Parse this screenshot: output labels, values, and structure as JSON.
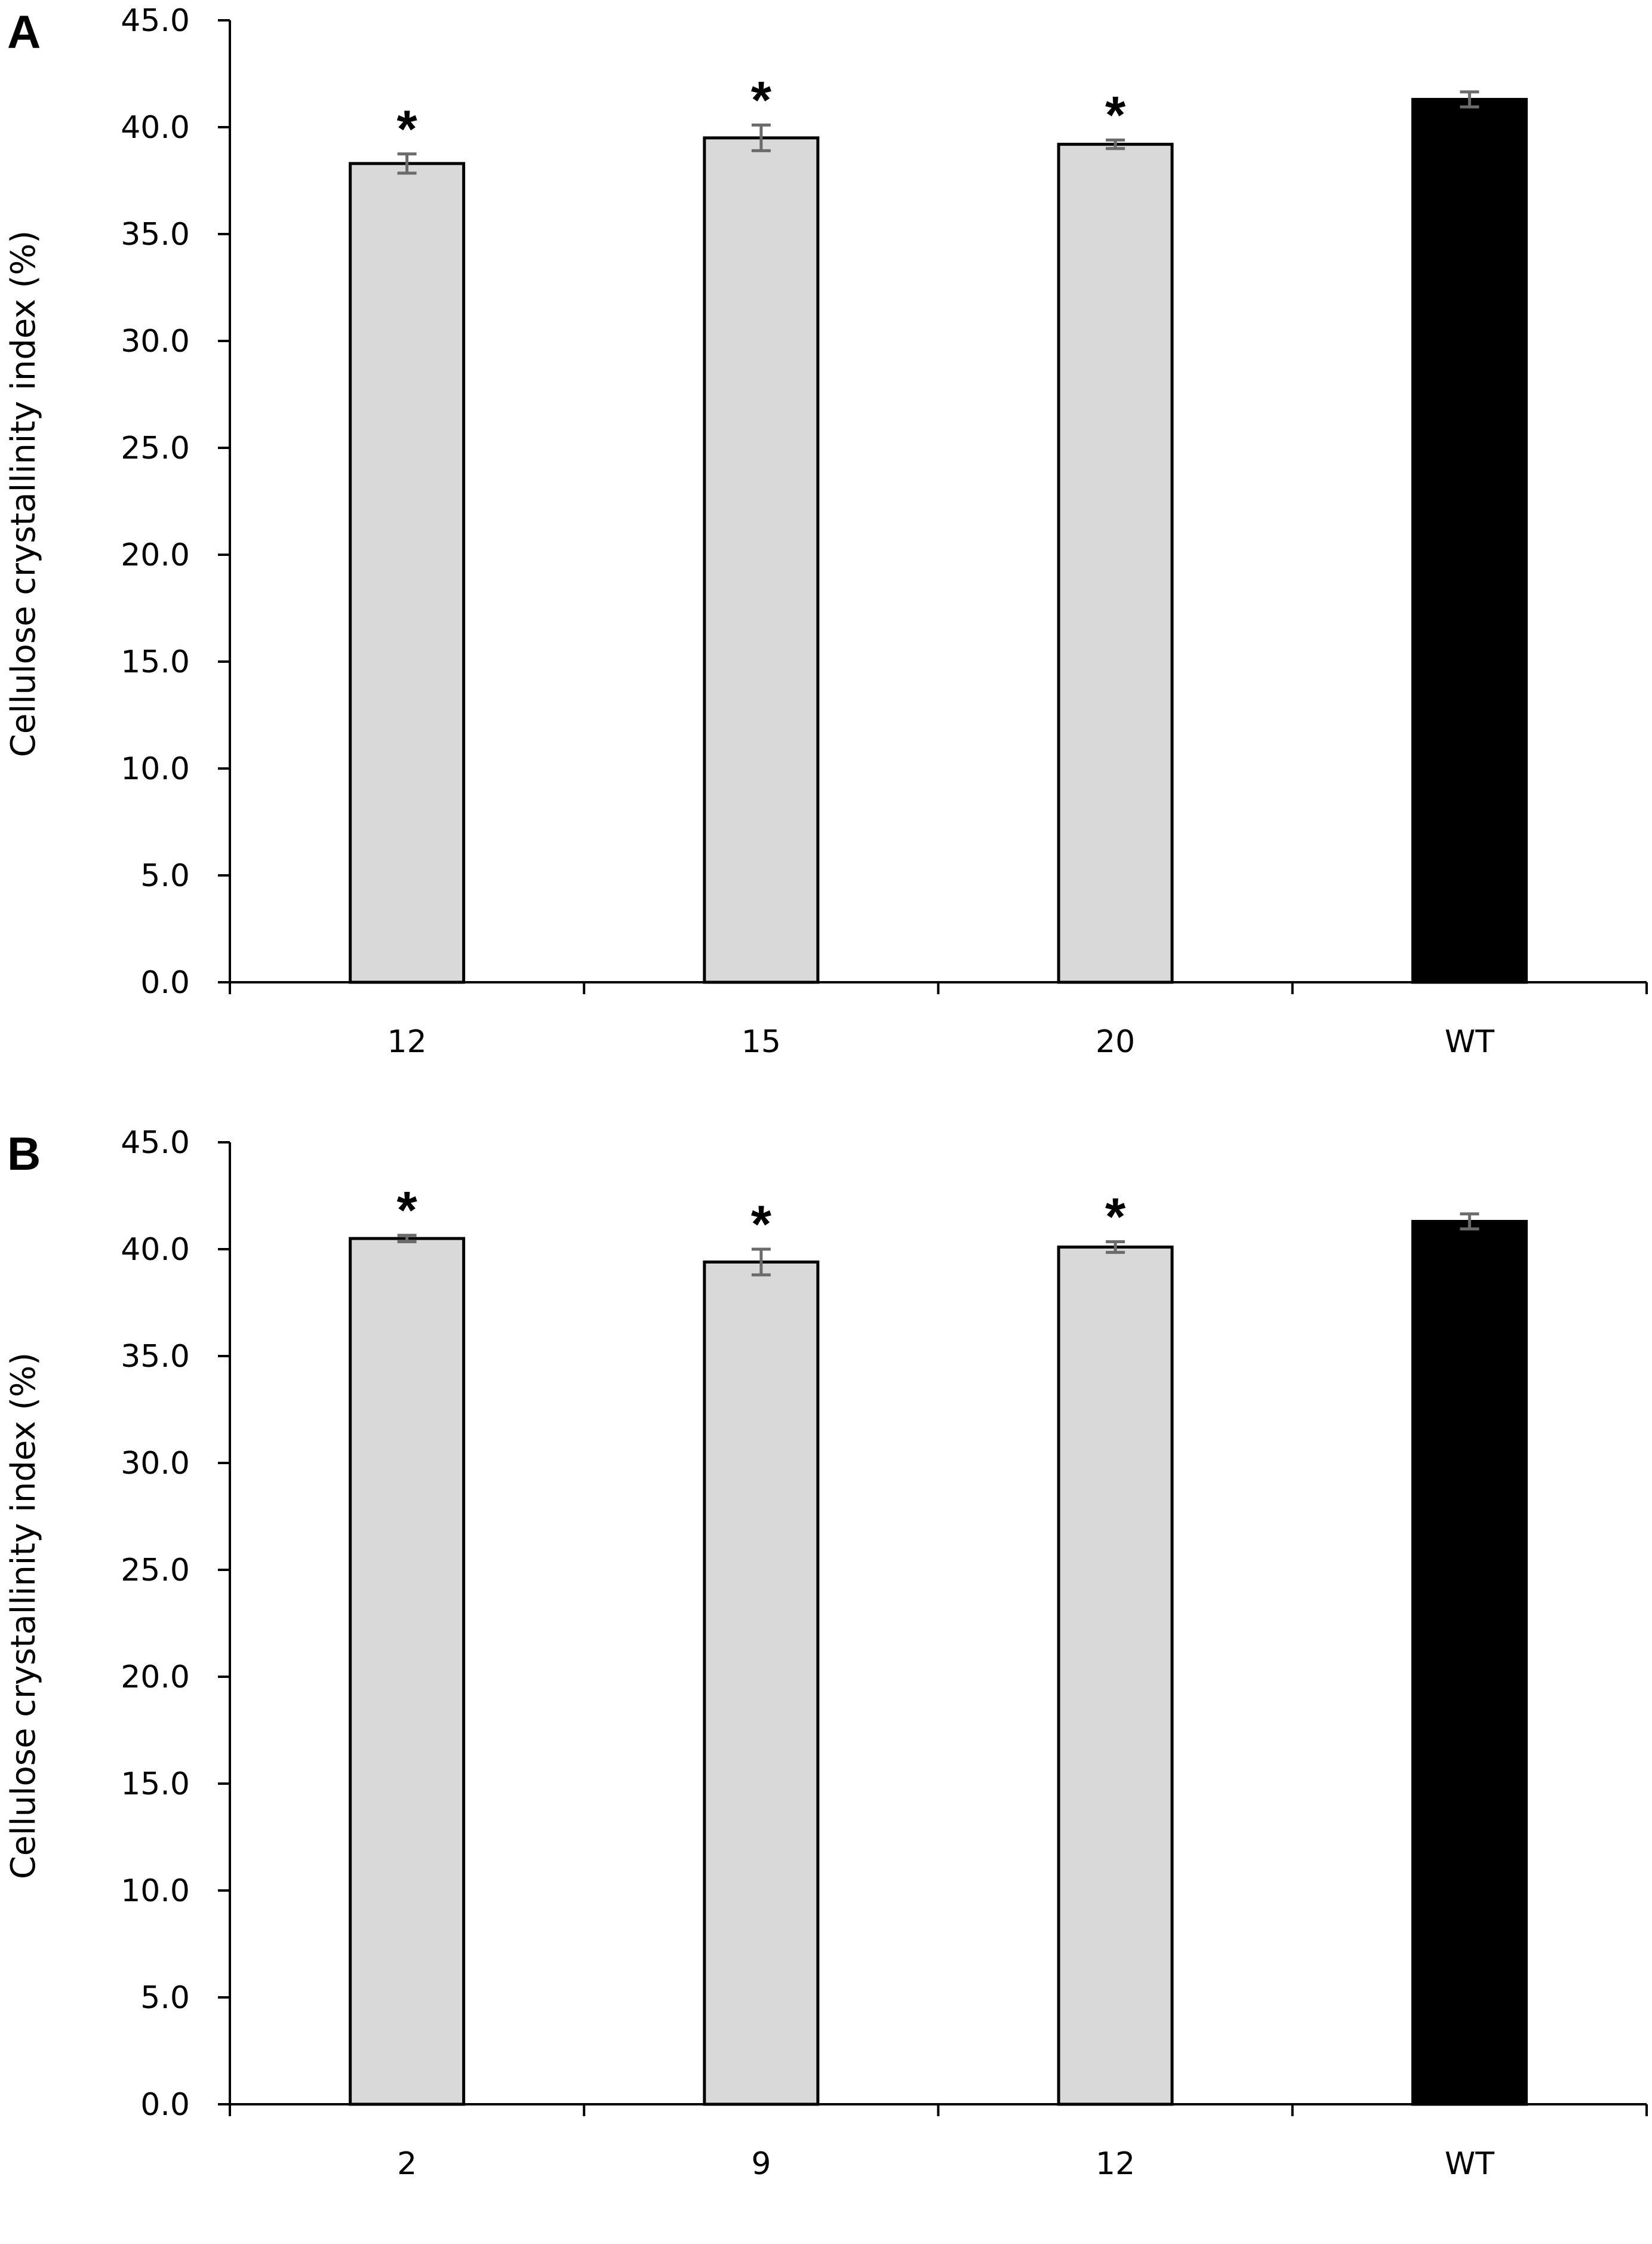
{
  "chart_data": [
    {
      "panel_label": "A",
      "type": "bar",
      "categories": [
        "12",
        "15",
        "20",
        "WT"
      ],
      "values": [
        38.3,
        39.5,
        39.2,
        41.3
      ],
      "errors": [
        0.45,
        0.6,
        0.2,
        0.35
      ],
      "significance": [
        "*",
        "*",
        "*",
        ""
      ],
      "bar_colors": [
        "#d9d9d9",
        "#d9d9d9",
        "#d9d9d9",
        "#000000"
      ],
      "ylabel": "Cellulose crystallinity index (%)",
      "ylim": [
        0,
        45
      ],
      "yticks": [
        "0.0",
        "5.0",
        "10.0",
        "15.0",
        "20.0",
        "25.0",
        "30.0",
        "35.0",
        "40.0",
        "45.0"
      ],
      "grid": false,
      "legend": false
    },
    {
      "panel_label": "B",
      "type": "bar",
      "categories": [
        "2",
        "9",
        "12",
        "WT"
      ],
      "values": [
        40.5,
        39.4,
        40.1,
        41.3
      ],
      "errors": [
        0.15,
        0.6,
        0.25,
        0.35
      ],
      "significance": [
        "*",
        "*",
        "*",
        ""
      ],
      "bar_colors": [
        "#d9d9d9",
        "#d9d9d9",
        "#d9d9d9",
        "#000000"
      ],
      "ylabel": "Cellulose crystallinity index (%)",
      "ylim": [
        0,
        45
      ],
      "yticks": [
        "0.0",
        "5.0",
        "10.0",
        "15.0",
        "20.0",
        "25.0",
        "30.0",
        "35.0",
        "40.0",
        "45.0"
      ],
      "grid": false,
      "legend": false
    }
  ]
}
